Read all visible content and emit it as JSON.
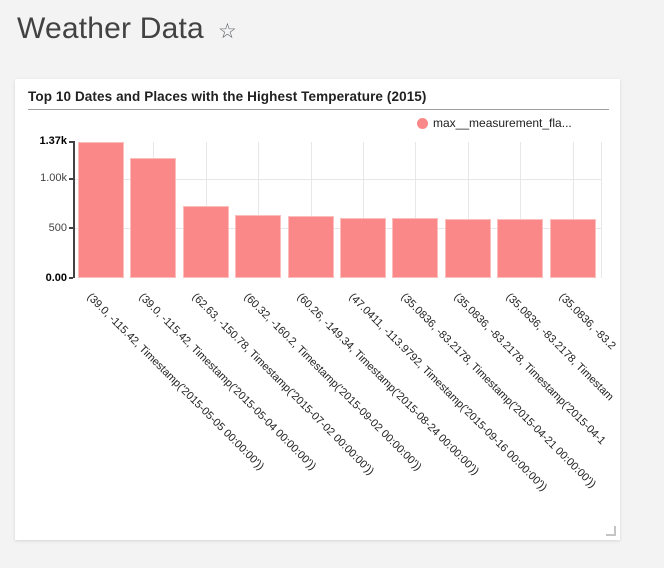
{
  "header": {
    "title": "Weather Data",
    "star_icon": "☆"
  },
  "chart_data": {
    "type": "bar",
    "title": "Top 10 Dates and Places with the Highest Temperature (2015)",
    "legend_label": "max__measurement_fla...",
    "legend_position": "top-right",
    "bar_color": "#fa8888",
    "grid": true,
    "xlabel": "",
    "ylabel": "",
    "ylim": [
      0,
      1370
    ],
    "yticks": [
      {
        "label": "1.37k",
        "value": 1370,
        "bold": true,
        "grid": false
      },
      {
        "label": "1.00k",
        "value": 1000,
        "bold": false,
        "grid": true
      },
      {
        "label": "500",
        "value": 500,
        "bold": false,
        "grid": true
      },
      {
        "label": "0.00",
        "value": 0,
        "bold": true,
        "grid": false
      }
    ],
    "categories": [
      "(39.0, -115.42, Timestamp('2015-05-05 00:00:00'))",
      "(39.0, -115.42, Timestamp('2015-05-04 00:00:00'))",
      "(62.63, -150.78, Timestamp('2015-07-02 00:00:00'))",
      "(60.32, -160.2, Timestamp('2015-09-02 00:00:00'))",
      "(60.26, -149.34, Timestamp('2015-08-24 00:00:00'))",
      "(47.0411, -113.9792, Timestamp('2015-09-16 00:00:00'))",
      "(35.0836, -83.2178, Timestamp('2015-04-21 00:00:00'))",
      "(35.0836, -83.2178, Timestamp('2015-04-1",
      "(35.0836, -83.2178, Timestam",
      "(35.0836, -83.2"
    ],
    "values": [
      1370,
      1210,
      720,
      636,
      627,
      601,
      599,
      598,
      597,
      592
    ]
  }
}
